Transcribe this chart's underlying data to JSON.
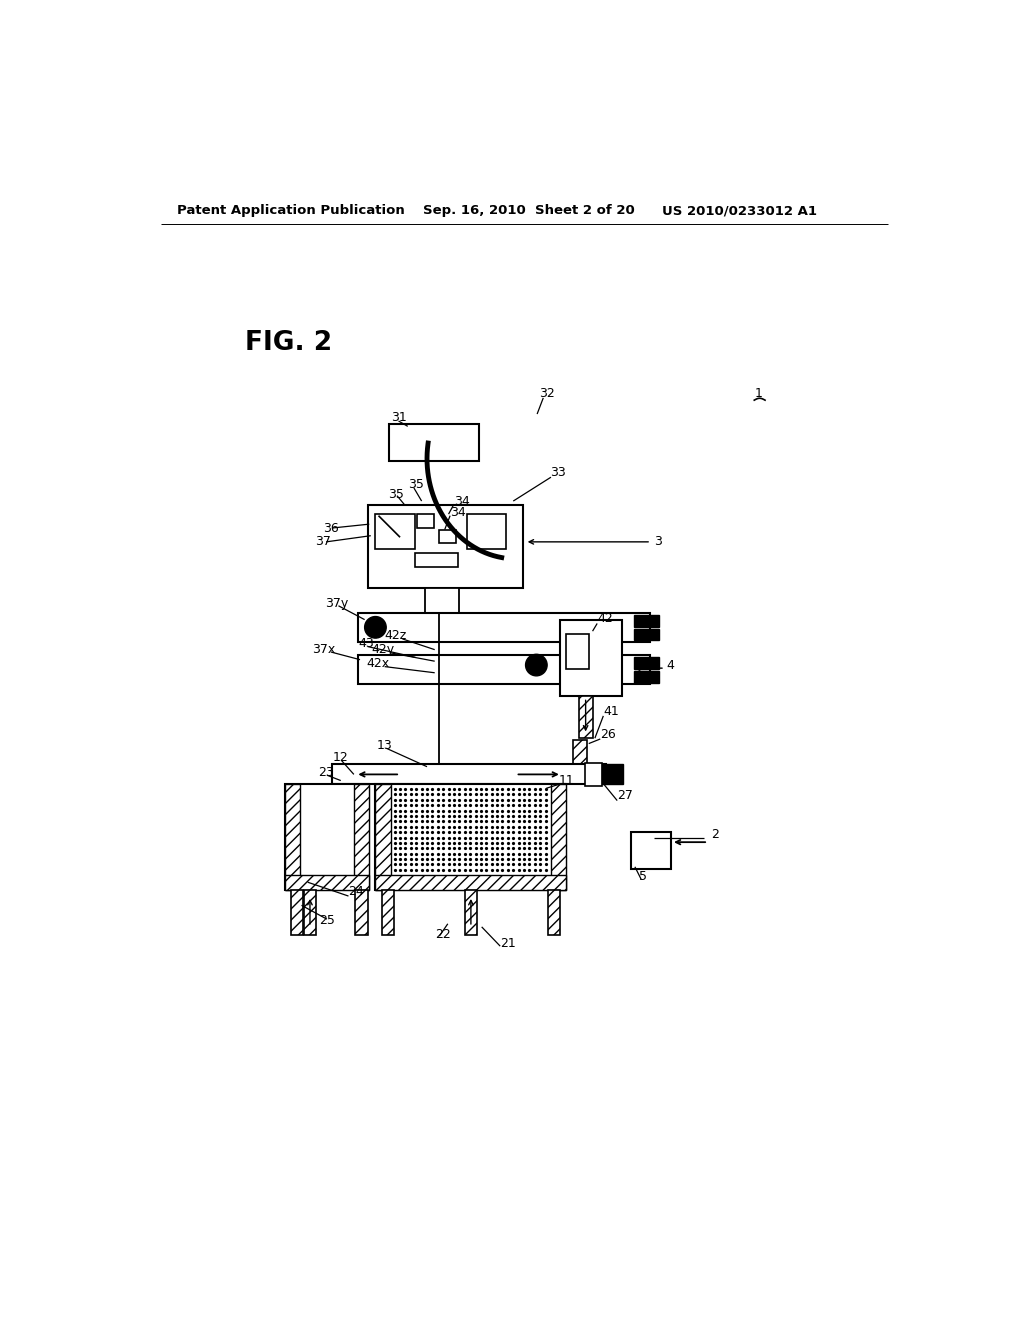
{
  "bg_color": "#ffffff",
  "header_left": "Patent Application Publication",
  "header_center": "Sep. 16, 2010  Sheet 2 of 20",
  "header_right": "US 2010/0233012 A1",
  "fig_label": "FIG. 2"
}
